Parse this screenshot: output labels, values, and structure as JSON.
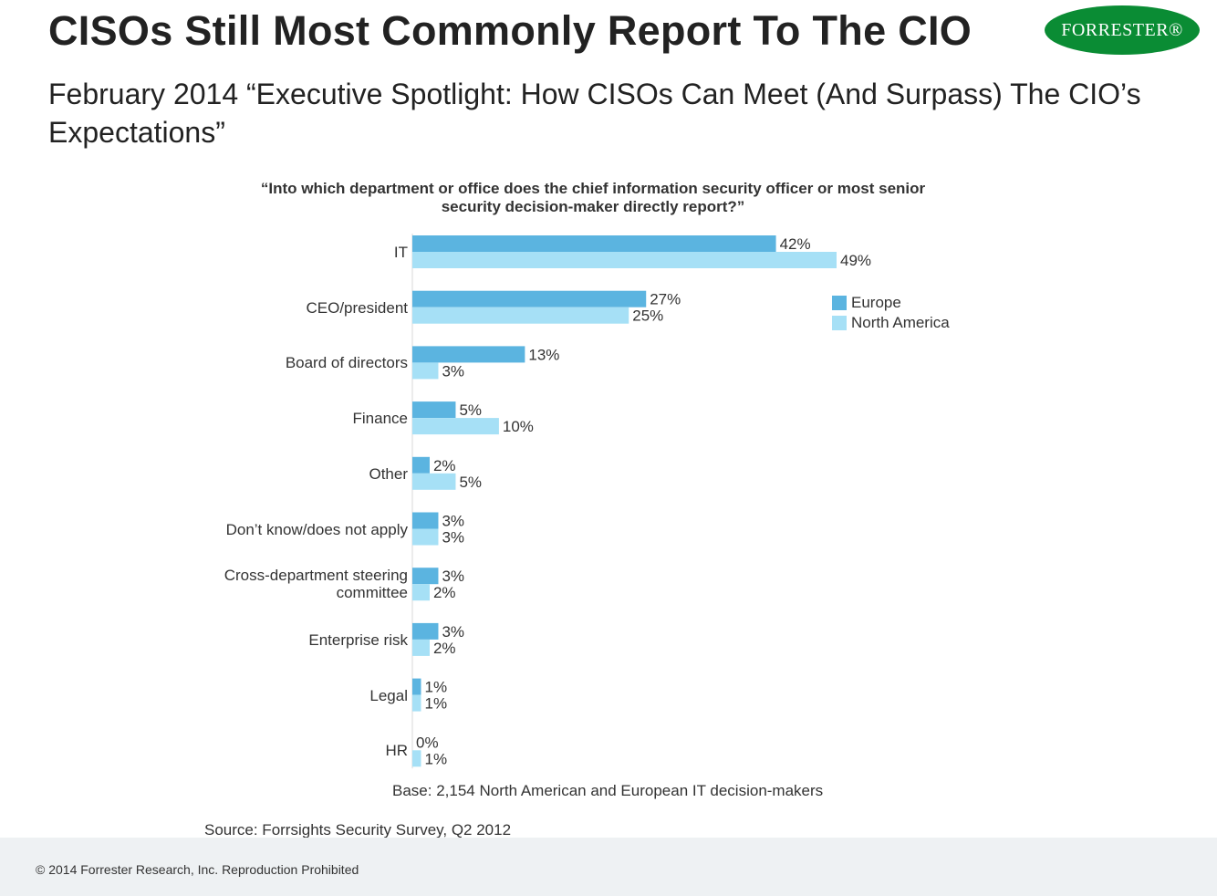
{
  "slide": {
    "title": "CISOs Still Most Commonly Report To The CIO",
    "subtitle": "February 2014 “Executive Spotlight: How CISOs Can Meet (And Surpass) The CIO’s Expectations”",
    "logo_text": "FORRESTER®",
    "footer": "© 2014 Forrester Research, Inc. Reproduction Prohibited"
  },
  "chart_data": {
    "type": "bar",
    "orientation": "horizontal",
    "title": "“Into which department or office does the chief information security officer or most senior security decision-maker directly report?”",
    "categories": [
      "IT",
      "CEO/president",
      "Board of directors",
      "Finance",
      "Other",
      "Don’t know/does not apply",
      "Cross-department steering committee",
      "Enterprise risk",
      "Legal",
      "HR"
    ],
    "series": [
      {
        "name": "Europe",
        "values": [
          42,
          27,
          13,
          5,
          2,
          3,
          3,
          3,
          1,
          0
        ],
        "color": "#5bb4e0"
      },
      {
        "name": "North America",
        "values": [
          49,
          25,
          3,
          10,
          5,
          3,
          2,
          2,
          1,
          1
        ],
        "color": "#a6e0f6"
      }
    ],
    "value_suffix": "%",
    "xlim": [
      0,
      49
    ],
    "grid": false,
    "legend_position": "right",
    "base_note": "Base: 2,154 North American and European IT decision-makers",
    "source": "Source: Forrsights Security Survey, Q2 2012"
  }
}
